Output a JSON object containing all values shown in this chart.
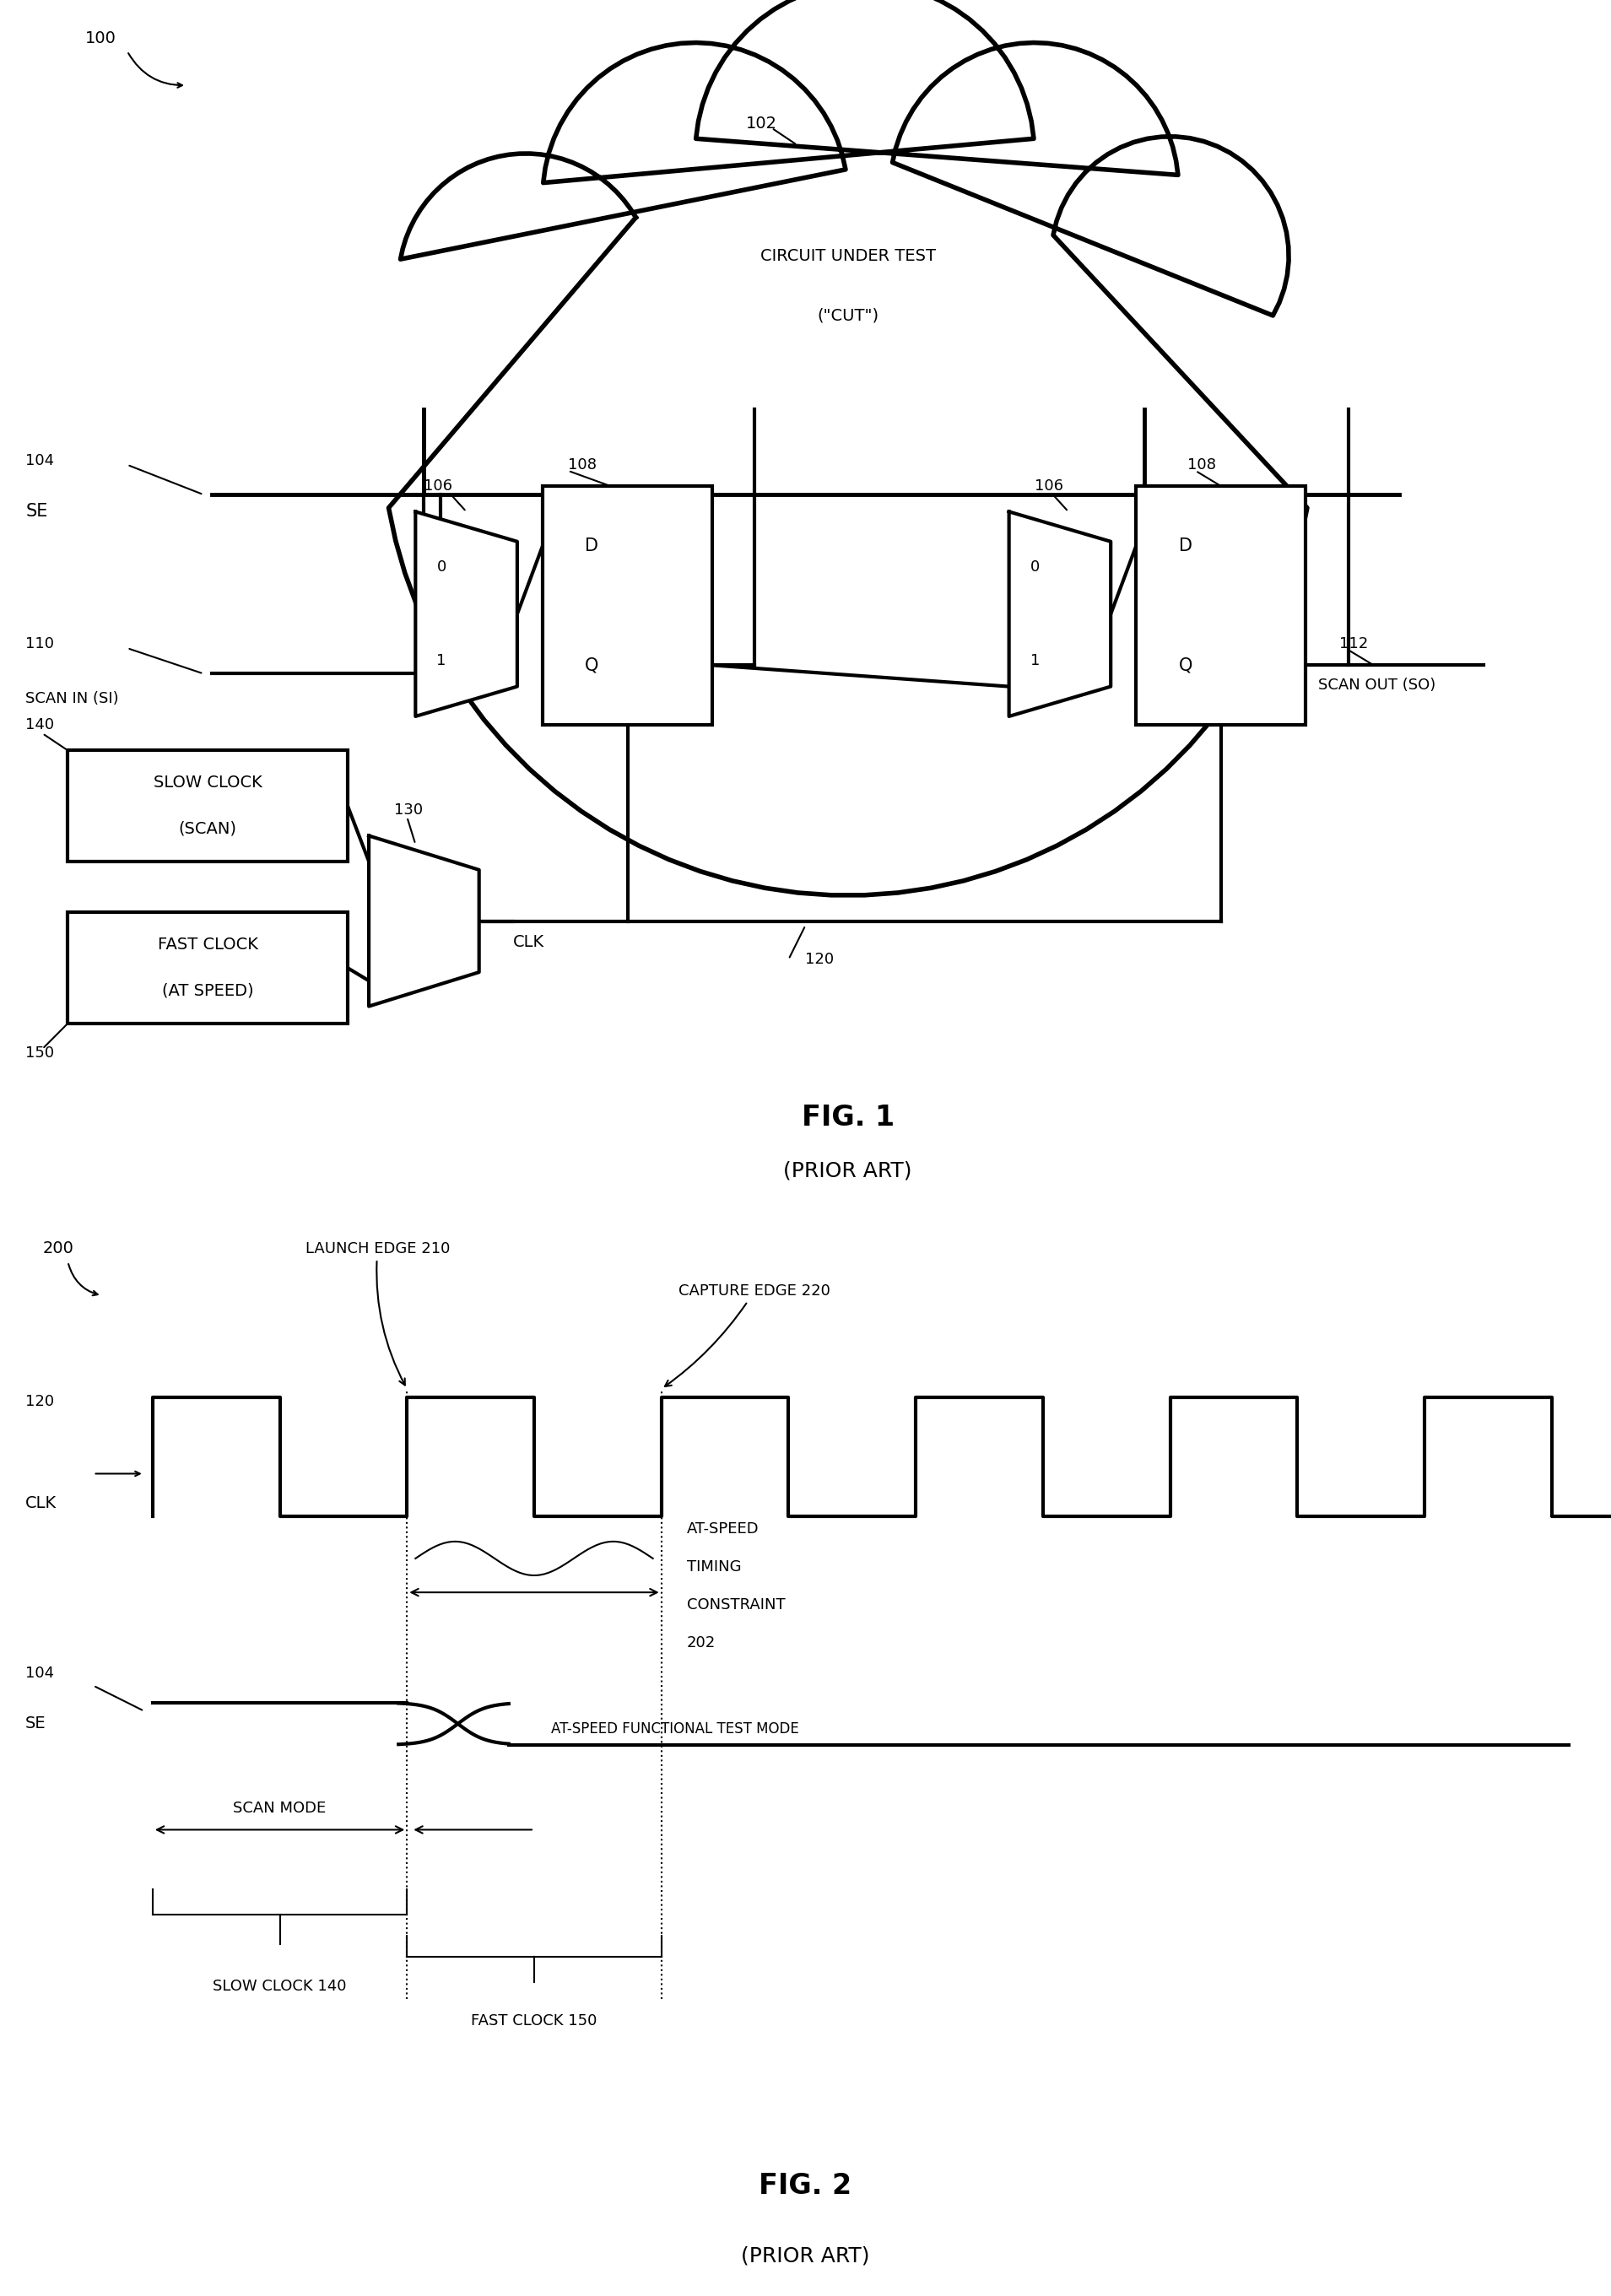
{
  "fig_width": 19.09,
  "fig_height": 27.21,
  "bg_color": "#ffffff",
  "line_color": "#000000",
  "lw": 3.0,
  "thin_lw": 1.5,
  "fig1": {
    "label": "100",
    "cloud_label": "102",
    "cloud_text1": "CIRCUIT UNDER TEST",
    "cloud_text2": "(\"CUT\")",
    "se_label": "104",
    "se_text": "SE",
    "mux1_label": "106",
    "mux2_label": "106",
    "ff1_label": "108",
    "ff2_label": "108",
    "si_label": "110",
    "si_text": "SCAN IN (SI)",
    "so_label": "112",
    "so_text": "SCAN OUT (SO)",
    "clk_mux_label": "130",
    "clk_bus_label": "120",
    "slow_clock_label": "140",
    "slow_clock_text1": "SLOW CLOCK",
    "slow_clock_text2": "(SCAN)",
    "fast_clock_label": "150",
    "fast_clock_text1": "FAST CLOCK",
    "fast_clock_text2": "(AT SPEED)",
    "clk_text": "CLK",
    "fig_label": "FIG. 1",
    "prior_art": "(PRIOR ART)"
  },
  "fig2": {
    "label": "200",
    "clk_label1": "120",
    "clk_label2": "CLK",
    "se_label": "104",
    "se_text": "SE",
    "launch_text": "LAUNCH EDGE 210",
    "capture_text": "CAPTURE EDGE 220",
    "timing_text1": "AT-SPEED",
    "timing_text2": "TIMING",
    "timing_text3": "CONSTRAINT",
    "timing_text4": "202",
    "scan_mode_text": "SCAN MODE",
    "slow_clock_text": "SLOW CLOCK 140",
    "fast_clock_text": "FAST CLOCK 150",
    "atspeed_text": "AT-SPEED FUNCTIONAL TEST MODE",
    "fig_label": "FIG. 2",
    "prior_art": "(PRIOR ART)"
  }
}
